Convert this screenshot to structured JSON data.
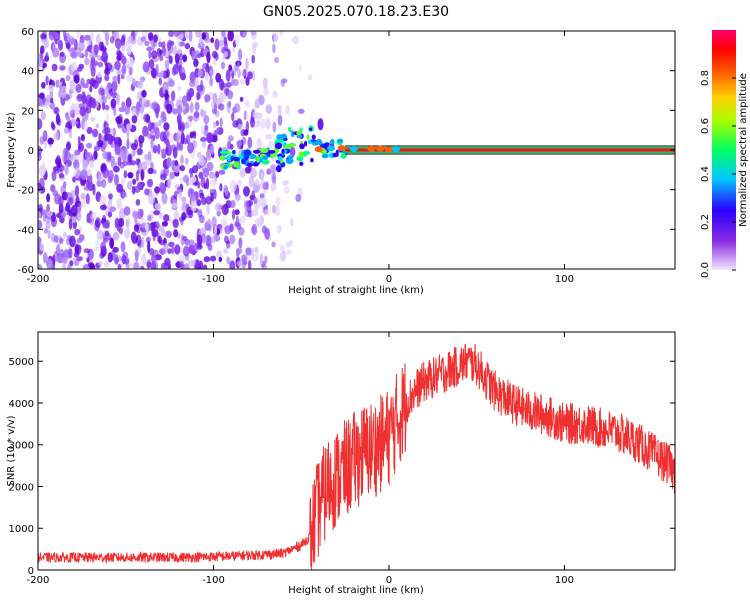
{
  "figure": {
    "title": "GN05.2025.070.18.23.E30"
  },
  "chart_data": [
    {
      "type": "heatmap",
      "xlabel": "Height of straight line (km)",
      "ylabel": "Frequency (Hz)",
      "xlim": [
        -200,
        163
      ],
      "ylim": [
        -60,
        60
      ],
      "xticks": [
        -200,
        -100,
        0,
        100
      ],
      "yticks": [
        60,
        40,
        20,
        0,
        -20,
        -40,
        -60
      ],
      "grid": false,
      "legend": "none",
      "description_of_signal": {
        "noise_region_x": [
          -200,
          -57
        ],
        "tone_frequency": 0,
        "tone_start_x": -90,
        "tone_end_x": 163,
        "peak_turbulence_x": [
          -60,
          -40
        ],
        "peak_turbulence_freq_range": [
          -8,
          18
        ]
      },
      "colorbar": {
        "label": "Normalized spectral amplitude",
        "range": [
          0,
          1
        ],
        "ticks": [
          0.0,
          0.2,
          0.4,
          0.6,
          0.8
        ],
        "colors": [
          "#e9d5ff",
          "#8a2be2",
          "#0000ff",
          "#00ffff",
          "#00ff00",
          "#ffff00",
          "#ff8000",
          "#ff0000",
          "#ff0080"
        ]
      }
    },
    {
      "type": "line",
      "xlabel": "Height of straight line (km)",
      "ylabel": "SNR (10 * v/v)",
      "xlim": [
        -200,
        163
      ],
      "ylim": [
        0,
        5700
      ],
      "xticks": [
        -200,
        -100,
        0,
        100
      ],
      "yticks": [
        0,
        1000,
        2000,
        3000,
        4000,
        5000
      ],
      "grid": false,
      "color": "#f03030",
      "series": [
        {
          "x": [
            -200,
            -180,
            -160,
            -140,
            -120,
            -100,
            -80,
            -60,
            -50,
            -45,
            -40,
            -35,
            -30,
            -25,
            -20,
            -15,
            -10,
            -5,
            0,
            5,
            10,
            15,
            20,
            25,
            30,
            35,
            40,
            45,
            50,
            55,
            60,
            70,
            80,
            90,
            100,
            110,
            120,
            130,
            140,
            150,
            160,
            163
          ],
          "values": [
            300,
            300,
            300,
            300,
            300,
            320,
            350,
            400,
            600,
            800,
            1500,
            2000,
            2200,
            2400,
            2600,
            2800,
            2900,
            3000,
            3200,
            3600,
            4000,
            4300,
            4500,
            4600,
            4700,
            4800,
            4900,
            5000,
            4900,
            4600,
            4300,
            4000,
            3800,
            3700,
            3500,
            3500,
            3400,
            3300,
            3100,
            2800,
            2500,
            2300
          ]
        }
      ]
    }
  ]
}
